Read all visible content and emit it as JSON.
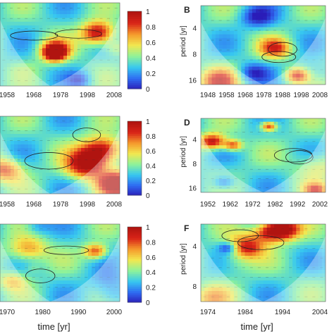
{
  "colormap": [
    "#2a1cb8",
    "#2f6cf2",
    "#37c8f0",
    "#8ef29a",
    "#f2e850",
    "#f59a2c",
    "#d92418",
    "#b01410"
  ],
  "colorbar_ticks": [
    "0",
    "0.2",
    "0.4",
    "0.6",
    "0.8",
    "1"
  ],
  "chart_data": [
    {
      "type": "heatmap",
      "panel": "A",
      "letter": "",
      "xticks": [
        "1958",
        "1968",
        "1978",
        "1998",
        "2008"
      ],
      "xlabel": "",
      "ylabel": "",
      "yticks": [],
      "seed": 11
    },
    {
      "type": "heatmap",
      "panel": "B",
      "letter": "B",
      "xticks": [
        "1948",
        "1958",
        "1968",
        "1978",
        "1988",
        "1998",
        "2008"
      ],
      "xlabel": "",
      "ylabel": "period [yr]",
      "yticks": [
        "4",
        "8",
        "16"
      ],
      "seed": 23
    },
    {
      "type": "heatmap",
      "panel": "C",
      "letter": "",
      "xticks": [
        "1958",
        "1968",
        "1978",
        "1998",
        "2008"
      ],
      "xlabel": "",
      "ylabel": "",
      "yticks": [],
      "seed": 37
    },
    {
      "type": "heatmap",
      "panel": "D",
      "letter": "D",
      "xticks": [
        "1952",
        "1962",
        "1972",
        "1982",
        "1992",
        "2002"
      ],
      "xlabel": "",
      "ylabel": "period [yr]",
      "yticks": [
        "4",
        "8",
        "16"
      ],
      "seed": 51
    },
    {
      "type": "heatmap",
      "panel": "E",
      "letter": "",
      "xticks": [
        "1970",
        "1980",
        "1990",
        "2000"
      ],
      "xlabel": "time [yr]",
      "ylabel": "",
      "yticks": [],
      "seed": 67
    },
    {
      "type": "heatmap",
      "panel": "F",
      "letter": "F",
      "xticks": [
        "1974",
        "1984",
        "1994",
        "2004"
      ],
      "xlabel": "time [yr]",
      "ylabel": "period [yr]",
      "yticks": [
        "4",
        "8"
      ],
      "seed": 83
    }
  ]
}
